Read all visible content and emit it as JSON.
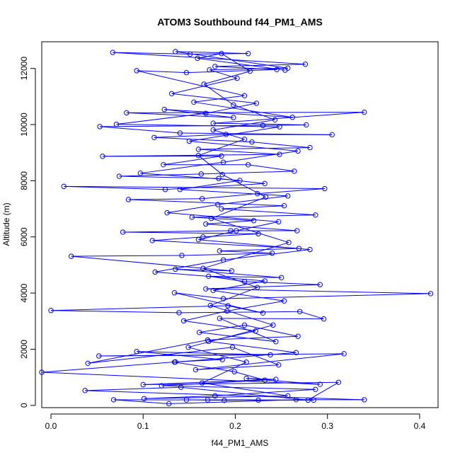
{
  "chart_data": {
    "type": "scatter",
    "title": "ATOM3 Southbound f44_PM1_AMS",
    "xlabel": "f44_PM1_AMS",
    "ylabel": "Altitude (m)",
    "xlim": [
      -0.01,
      0.42
    ],
    "ylim": [
      -80,
      12950
    ],
    "x_ticks": [
      0.0,
      0.1,
      0.2,
      0.3,
      0.4
    ],
    "x_tick_labels": [
      "0.0",
      "0.1",
      "0.2",
      "0.3",
      "0.4"
    ],
    "y_ticks": [
      0,
      2000,
      4000,
      6000,
      8000,
      10000,
      12000
    ],
    "y_tick_labels": [
      "0",
      "2000",
      "4000",
      "6000",
      "8000",
      "10000",
      "12000"
    ],
    "grid": false,
    "legend": "none",
    "series_color": "#0000ff",
    "marker": "open-circle",
    "connected": true,
    "series": [
      {
        "points": [
          [
            0.147,
            196
          ],
          [
            0.188,
            180
          ],
          [
            0.225,
            187
          ],
          [
            0.17,
            196
          ],
          [
            0.285,
            187
          ],
          [
            0.068,
            200
          ],
          [
            0.128,
            60
          ],
          [
            0.266,
            202
          ],
          [
            0.34,
            200
          ],
          [
            0.037,
            528
          ],
          [
            0.141,
            645
          ],
          [
            0.279,
            188
          ],
          [
            0.312,
            820
          ],
          [
            0.1,
            740
          ],
          [
            0.244,
            926
          ],
          [
            0.212,
            960
          ],
          [
            0.292,
            750
          ],
          [
            -0.01,
            1180
          ],
          [
            0.135,
            1550
          ],
          [
            0.186,
            1630
          ],
          [
            0.093,
            1920
          ],
          [
            0.238,
            1800
          ],
          [
            0.052,
            1760
          ],
          [
            0.318,
            1840
          ],
          [
            0.157,
            1270
          ],
          [
            0.247,
            1440
          ],
          [
            0.197,
            2070
          ],
          [
            0.04,
            1500
          ],
          [
            0.17,
            2330
          ],
          [
            0.268,
            2460
          ],
          [
            0.21,
            2860
          ],
          [
            0.161,
            2600
          ],
          [
            0.244,
            2270
          ],
          [
            0.183,
            3100
          ],
          [
            0.296,
            3080
          ],
          [
            0.27,
            3340
          ],
          [
            0.139,
            3300
          ],
          [
            0.0,
            3380
          ],
          [
            0.192,
            3550
          ],
          [
            0.23,
            3290
          ],
          [
            0.134,
            4010
          ],
          [
            0.187,
            3800
          ],
          [
            0.412,
            3980
          ],
          [
            0.168,
            4150
          ],
          [
            0.292,
            4300
          ],
          [
            0.21,
            4410
          ],
          [
            0.171,
            4600
          ],
          [
            0.25,
            4550
          ],
          [
            0.135,
            4850
          ],
          [
            0.196,
            4790
          ],
          [
            0.022,
            5310
          ],
          [
            0.142,
            5340
          ],
          [
            0.24,
            5420
          ],
          [
            0.183,
            5500
          ],
          [
            0.269,
            5590
          ],
          [
            0.11,
            5870
          ],
          [
            0.165,
            6000
          ],
          [
            0.225,
            6110
          ],
          [
            0.078,
            6170
          ],
          [
            0.195,
            6220
          ],
          [
            0.267,
            6220
          ],
          [
            0.168,
            6460
          ],
          [
            0.22,
            6580
          ],
          [
            0.153,
            6700
          ],
          [
            0.287,
            6780
          ],
          [
            0.185,
            7000
          ],
          [
            0.253,
            7110
          ],
          [
            0.084,
            7330
          ],
          [
            0.164,
            7360
          ],
          [
            0.224,
            7540
          ],
          [
            0.297,
            7720
          ],
          [
            0.014,
            7800
          ],
          [
            0.124,
            7690
          ],
          [
            0.232,
            7900
          ],
          [
            0.182,
            8080
          ],
          [
            0.074,
            8160
          ],
          [
            0.163,
            8240
          ],
          [
            0.264,
            8340
          ],
          [
            0.214,
            8570
          ],
          [
            0.122,
            8570
          ],
          [
            0.185,
            8880
          ],
          [
            0.056,
            8870
          ],
          [
            0.248,
            8940
          ],
          [
            0.16,
            9120
          ],
          [
            0.281,
            9180
          ],
          [
            0.218,
            9380
          ],
          [
            0.112,
            9540
          ],
          [
            0.19,
            9650
          ],
          [
            0.305,
            9640
          ],
          [
            0.14,
            9700
          ],
          [
            0.053,
            9930
          ],
          [
            0.23,
            9970
          ],
          [
            0.277,
            9990
          ],
          [
            0.176,
            10050
          ],
          [
            0.34,
            10440
          ],
          [
            0.082,
            10420
          ],
          [
            0.198,
            10250
          ],
          [
            0.123,
            10540
          ],
          [
            0.262,
            10260
          ],
          [
            0.155,
            10800
          ],
          [
            0.21,
            11030
          ],
          [
            0.093,
            11920
          ],
          [
            0.147,
            11850
          ],
          [
            0.245,
            11960
          ],
          [
            0.178,
            12070
          ],
          [
            0.276,
            12150
          ],
          [
            0.067,
            12570
          ],
          [
            0.151,
            12510
          ],
          [
            0.214,
            12530
          ],
          [
            0.135,
            12600
          ],
          [
            0.257,
            12010
          ],
          [
            0.172,
            11950
          ],
          [
            0.202,
            11650
          ],
          [
            0.131,
            11100
          ],
          [
            0.223,
            10760
          ],
          [
            0.168,
            10400
          ],
          [
            0.071,
            10010
          ],
          [
            0.248,
            9920
          ],
          [
            0.15,
            9410
          ],
          [
            0.268,
            9060
          ],
          [
            0.187,
            8660
          ],
          [
            0.097,
            8270
          ],
          [
            0.205,
            8010
          ],
          [
            0.14,
            7690
          ],
          [
            0.257,
            7460
          ],
          [
            0.181,
            7150
          ],
          [
            0.126,
            6860
          ],
          [
            0.247,
            6540
          ],
          [
            0.201,
            6220
          ],
          [
            0.16,
            5900
          ],
          [
            0.281,
            5550
          ],
          [
            0.187,
            5180
          ],
          [
            0.113,
            4750
          ],
          [
            0.232,
            4430
          ],
          [
            0.176,
            4090
          ],
          [
            0.253,
            3720
          ],
          [
            0.191,
            3360
          ],
          [
            0.144,
            3010
          ],
          [
            0.222,
            2650
          ],
          [
            0.171,
            2280
          ],
          [
            0.266,
            1880
          ],
          [
            0.134,
            1540
          ],
          [
            0.199,
            1200
          ],
          [
            0.232,
            900
          ],
          [
            0.12,
            700
          ],
          [
            0.287,
            570
          ],
          [
            0.178,
            340
          ],
          [
            0.101,
            240
          ],
          [
            0.257,
            340
          ],
          [
            0.164,
            800
          ],
          [
            0.212,
            1540
          ],
          [
            0.149,
            2070
          ],
          [
            0.241,
            2860
          ],
          [
            0.173,
            3560
          ],
          [
            0.224,
            4200
          ],
          [
            0.165,
            4880
          ],
          [
            0.258,
            5800
          ],
          [
            0.174,
            6660
          ],
          [
            0.233,
            7420
          ],
          [
            0.186,
            8220
          ],
          [
            0.16,
            8900
          ],
          [
            0.21,
            9480
          ],
          [
            0.176,
            9810
          ],
          [
            0.243,
            10170
          ],
          [
            0.198,
            10700
          ],
          [
            0.166,
            11440
          ],
          [
            0.216,
            11900
          ],
          [
            0.185,
            12530
          ],
          [
            0.159,
            12360
          ],
          [
            0.254,
            11940
          ]
        ]
      }
    ]
  }
}
